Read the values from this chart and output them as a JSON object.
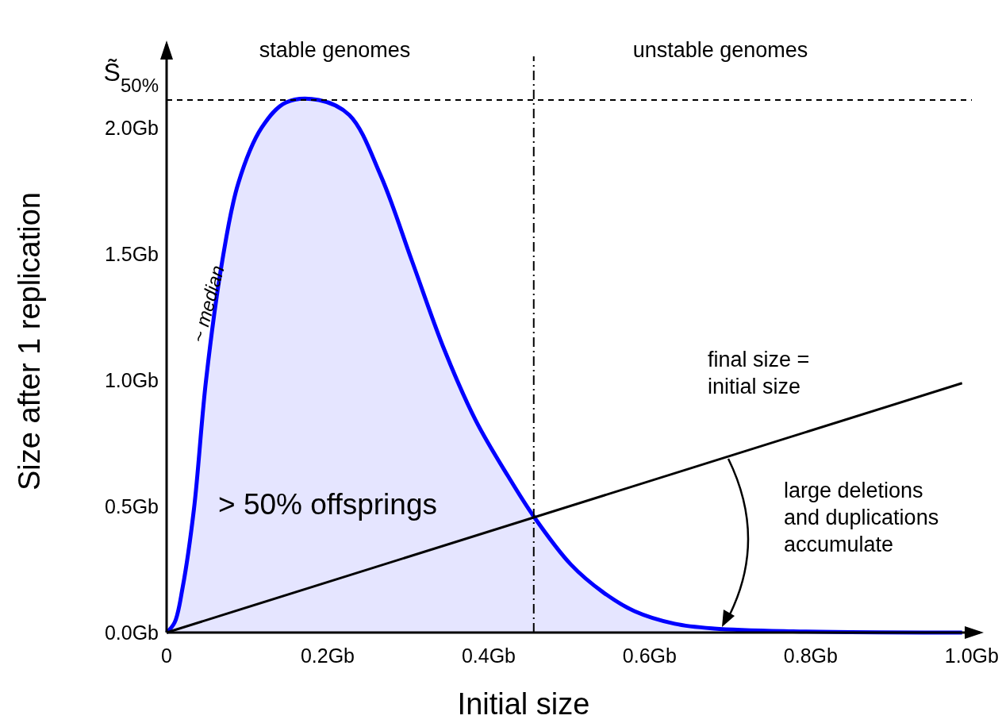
{
  "chart_data": {
    "type": "area",
    "xlabel": "Initial size",
    "ylabel": "Size after 1 replication",
    "xlim": [
      0,
      1.01
    ],
    "ylim": [
      0,
      2.33
    ],
    "xticks": [
      {
        "value": 0,
        "label": "0"
      },
      {
        "value": 0.2,
        "label": "0.2Gb"
      },
      {
        "value": 0.4,
        "label": "0.4Gb"
      },
      {
        "value": 0.6,
        "label": "0.6Gb"
      },
      {
        "value": 0.8,
        "label": "0.8Gb"
      },
      {
        "value": 1.0,
        "label": "1.0Gb"
      }
    ],
    "yticks": [
      {
        "value": 0,
        "label": "0.0Gb"
      },
      {
        "value": 0.5,
        "label": "0.5Gb"
      },
      {
        "value": 1.0,
        "label": "1.0Gb"
      },
      {
        "value": 1.5,
        "label": "1.5Gb"
      },
      {
        "value": 2.0,
        "label": "2.0Gb"
      }
    ],
    "grid": false,
    "marker": "none",
    "series": [
      {
        "type": "area",
        "color": "#0000ff",
        "x": [
          0,
          0.01,
          0.02,
          0.034,
          0.049,
          0.069,
          0.089,
          0.118,
          0.148,
          0.189,
          0.227,
          0.266,
          0.305,
          0.345,
          0.384,
          0.424,
          0.456,
          0.502,
          0.542,
          0.581,
          0.631,
          0.68,
          0.778,
          0.988
        ],
        "values": [
          0,
          0.04,
          0.18,
          0.49,
          1.0,
          1.47,
          1.78,
          2.0,
          2.1,
          2.11,
          2.05,
          1.81,
          1.47,
          1.12,
          0.84,
          0.62,
          0.46,
          0.27,
          0.16,
          0.085,
          0.035,
          0.016,
          0.005,
          0
        ]
      },
      {
        "type": "line",
        "color": "#000000",
        "x": [
          0,
          0.988
        ],
        "values": [
          0,
          0.988
        ]
      }
    ],
    "ref_lines": [
      {
        "axis": "y",
        "value": 2.11,
        "label": "S̃$_{50%}$",
        "line_style": "dashed",
        "color": "#000000"
      },
      {
        "axis": "x",
        "value": 0.456,
        "line_style": "dashdot",
        "color": "#000000"
      }
    ],
    "annotations": [
      "stable genomes",
      "unstable genomes",
      "~ median",
      "> 50% offsprings",
      "final size = initial size",
      "large deletions and duplications accumulate"
    ]
  }
}
